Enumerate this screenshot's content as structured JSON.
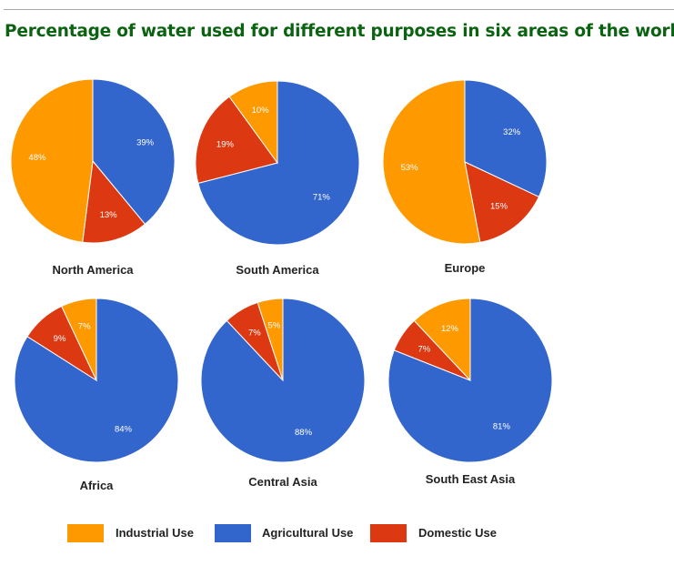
{
  "chart_data": {
    "type": "pie",
    "title": "Percentage of water used for different purposes in six areas of the world.",
    "categories": [
      "Agricultural Use",
      "Domestic Use",
      "Industrial Use"
    ],
    "colors": {
      "Industrial Use": "#ff9900",
      "Agricultural Use": "#3366cc",
      "Domestic Use": "#dc3912"
    },
    "legend": {
      "position": "bottom",
      "order": [
        "Industrial Use",
        "Agricultural Use",
        "Domestic Use"
      ]
    },
    "charts": [
      {
        "name": "North America",
        "values": [
          39,
          13,
          48
        ]
      },
      {
        "name": "South America",
        "values": [
          71,
          19,
          10
        ]
      },
      {
        "name": "Europe",
        "values": [
          32,
          15,
          53
        ]
      },
      {
        "name": "Africa",
        "values": [
          84,
          9,
          7
        ]
      },
      {
        "name": "Central Asia",
        "values": [
          88,
          7,
          5
        ]
      },
      {
        "name": "South East Asia",
        "values": [
          81,
          7,
          12
        ]
      }
    ]
  }
}
